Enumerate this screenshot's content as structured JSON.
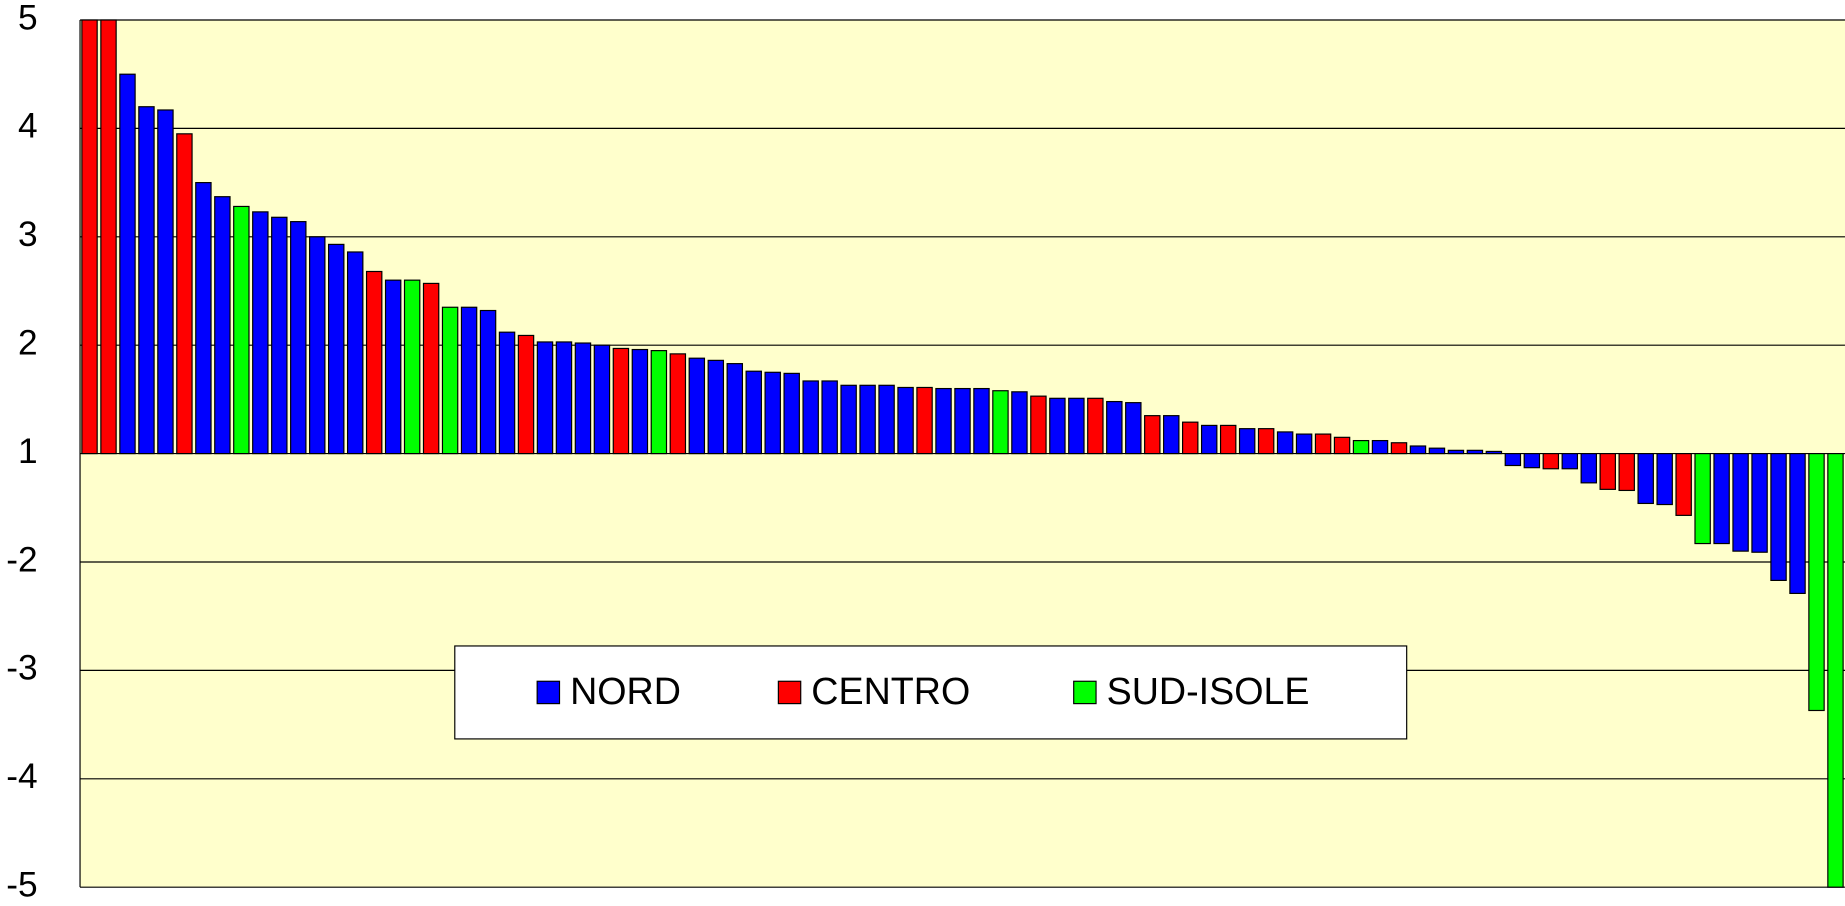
{
  "chart_data": {
    "type": "bar",
    "bar_base": 1,
    "categories": [
      null,
      null,
      null,
      null,
      null,
      null,
      null,
      null,
      null,
      null,
      null,
      null,
      null,
      null,
      null,
      null,
      null,
      null,
      null,
      null,
      null,
      null,
      null,
      null,
      null,
      null,
      null,
      null,
      null,
      null,
      null,
      null,
      null,
      null,
      null,
      null,
      null,
      null,
      null,
      null,
      null,
      null,
      null,
      null,
      null,
      null,
      null,
      null,
      null,
      null,
      null,
      null,
      null,
      null,
      null,
      null,
      null,
      null,
      null,
      null,
      null,
      null,
      null,
      null,
      null,
      null,
      null,
      null,
      null,
      null,
      null,
      null,
      null,
      null,
      null,
      null,
      null,
      null,
      null,
      null,
      null,
      null,
      null,
      null,
      null,
      null,
      null,
      null,
      null,
      null,
      null,
      null,
      null
    ],
    "series": [
      {
        "name": "NORD",
        "color": "#0000ff",
        "values": [
          null,
          null,
          4.5,
          4.2,
          4.17,
          null,
          3.5,
          3.37,
          null,
          3.23,
          3.18,
          3.14,
          3,
          2.93,
          2.86,
          null,
          2.6,
          null,
          null,
          null,
          2.35,
          2.32,
          2.12,
          null,
          2.03,
          2.03,
          2.02,
          2,
          null,
          1.96,
          null,
          null,
          1.88,
          1.86,
          1.83,
          1.76,
          1.75,
          1.74,
          1.67,
          1.67,
          1.63,
          1.63,
          1.63,
          1.61,
          null,
          1.6,
          1.6,
          1.6,
          null,
          1.57,
          null,
          1.51,
          1.51,
          null,
          1.48,
          1.47,
          null,
          1.35,
          null,
          1.26,
          null,
          1.23,
          null,
          1.2,
          1.18,
          null,
          null,
          null,
          1.12,
          null,
          1.07,
          1.05,
          1.03,
          1.03,
          1.02,
          0.89,
          0.87,
          null,
          0.86,
          0.73,
          null,
          null,
          0.54,
          0.53,
          null,
          null,
          0.17,
          0.1,
          0.09,
          -0.17,
          -0.29,
          null,
          null
        ]
      },
      {
        "name": "CENTRO",
        "color": "#ff0000",
        "values": [
          5,
          5,
          null,
          null,
          null,
          3.95,
          null,
          null,
          null,
          null,
          null,
          null,
          null,
          null,
          null,
          2.68,
          null,
          null,
          2.57,
          null,
          null,
          null,
          null,
          2.09,
          null,
          null,
          null,
          null,
          1.97,
          null,
          null,
          1.92,
          null,
          null,
          null,
          null,
          null,
          null,
          null,
          null,
          null,
          null,
          null,
          null,
          1.61,
          null,
          null,
          null,
          null,
          null,
          1.53,
          null,
          null,
          1.51,
          null,
          null,
          1.35,
          null,
          1.29,
          null,
          1.26,
          null,
          1.23,
          null,
          null,
          1.18,
          1.15,
          null,
          null,
          1.1,
          null,
          null,
          null,
          null,
          null,
          null,
          null,
          0.86,
          null,
          null,
          0.67,
          0.66,
          null,
          null,
          0.43,
          null,
          null,
          null,
          null,
          null,
          null,
          null,
          null
        ]
      },
      {
        "name": "SUD-ISOLE",
        "color": "#00ff00",
        "values": [
          null,
          null,
          null,
          null,
          null,
          null,
          null,
          null,
          3.28,
          null,
          null,
          null,
          null,
          null,
          null,
          null,
          null,
          2.6,
          null,
          2.35,
          null,
          null,
          null,
          null,
          null,
          null,
          null,
          null,
          null,
          null,
          1.95,
          null,
          null,
          null,
          null,
          null,
          null,
          null,
          null,
          null,
          null,
          null,
          null,
          null,
          null,
          null,
          null,
          null,
          1.58,
          null,
          null,
          null,
          null,
          null,
          null,
          null,
          null,
          null,
          null,
          null,
          null,
          null,
          null,
          null,
          null,
          null,
          null,
          1.12,
          null,
          null,
          null,
          null,
          null,
          null,
          null,
          null,
          null,
          null,
          null,
          null,
          null,
          null,
          null,
          null,
          null,
          0.17,
          null,
          null,
          null,
          null,
          null,
          -1.37,
          -3
        ]
      }
    ],
    "ylim": [
      -3,
      5
    ],
    "yticks": [
      5,
      4,
      3,
      2,
      1,
      {
        "value": 0,
        "label": "-2"
      },
      {
        "value": -1,
        "label": "-3"
      },
      {
        "value": -2,
        "label": "-4"
      },
      {
        "value": -3,
        "label": "-5"
      }
    ],
    "grid": true,
    "legend_position": "center",
    "background": "#ffffcc"
  }
}
